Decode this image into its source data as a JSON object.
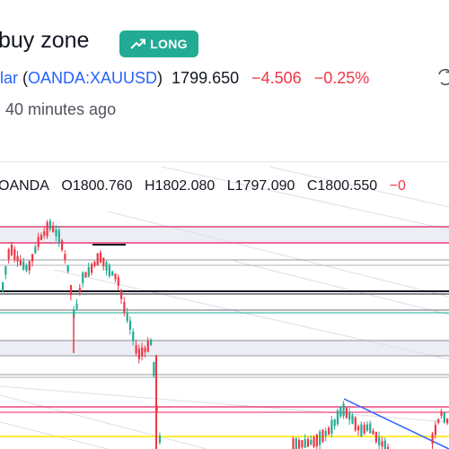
{
  "idea": {
    "title": "buy zone",
    "badge_label": "LONG",
    "symbol_short": "lar",
    "symbol_full": "OANDA:XAUUSD",
    "price": "1799.650",
    "change": "−4.506",
    "change_pct": "−0.25%",
    "published": "40 minutes ago"
  },
  "chart": {
    "source": "OANDA",
    "ohlc": {
      "o_label": "O",
      "o_value": "1800.760",
      "h_label": "H",
      "h_value": "1802.080",
      "l_label": "L",
      "l_value": "1797.090",
      "c_label": "C",
      "c_value": "1800.550",
      "change": "−0"
    },
    "colors": {
      "up": "#22ab94",
      "down": "#f23645",
      "zone_line": "#e91e63",
      "trend": "#2962ff",
      "yellow": "#ffeb3b"
    }
  },
  "icons": {
    "badge": "trend-up-icon",
    "swap": "swap-icon"
  }
}
